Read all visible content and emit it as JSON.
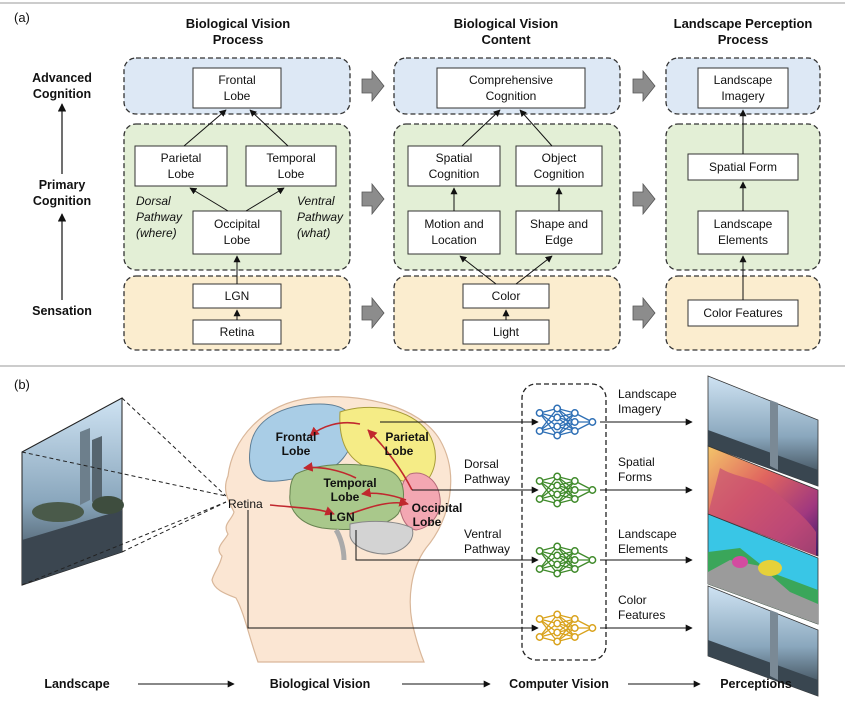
{
  "panel_a": {
    "label": "(a)",
    "col1": {
      "l1": "Biological Vision",
      "l2": "Process"
    },
    "col2": {
      "l1": "Biological Vision",
      "l2": "Content"
    },
    "col3": {
      "l1": "Landscape Perception",
      "l2": "Process"
    },
    "levels": {
      "advanced": {
        "l1": "Advanced",
        "l2": "Cognition"
      },
      "primary": {
        "l1": "Primary",
        "l2": "Cognition"
      },
      "sensation": "Sensation"
    },
    "process": {
      "frontal": {
        "l1": "Frontal",
        "l2": "Lobe"
      },
      "parietal": {
        "l1": "Parietal",
        "l2": "Lobe"
      },
      "temporal": {
        "l1": "Temporal",
        "l2": "Lobe"
      },
      "occipital": {
        "l1": "Occipital",
        "l2": "Lobe"
      },
      "lgn": "LGN",
      "retina": "Retina",
      "dorsal": {
        "l1": "Dorsal",
        "l2": "Pathway",
        "l3": "(where)"
      },
      "ventral": {
        "l1": "Ventral",
        "l2": "Pathway",
        "l3": "(what)"
      }
    },
    "content": {
      "comprehensive": {
        "l1": "Comprehensive",
        "l2": "Cognition"
      },
      "spatial": {
        "l1": "Spatial",
        "l2": "Cognition"
      },
      "object": {
        "l1": "Object",
        "l2": "Cognition"
      },
      "motion": {
        "l1": "Motion and",
        "l2": "Location"
      },
      "shape": {
        "l1": "Shape and",
        "l2": "Edge"
      },
      "color": "Color",
      "light": "Light"
    },
    "landscape": {
      "imagery": {
        "l1": "Landscape",
        "l2": "Imagery"
      },
      "spatial_form": "Spatial Form",
      "elements": {
        "l1": "Landscape",
        "l2": "Elements"
      },
      "color_features": "Color Features"
    }
  },
  "panel_b": {
    "label": "(b)",
    "brain": {
      "frontal": {
        "l1": "Frontal",
        "l2": "Lobe"
      },
      "parietal": {
        "l1": "Parietal",
        "l2": "Lobe"
      },
      "temporal": {
        "l1": "Temporal",
        "l2": "Lobe"
      },
      "occipital": {
        "l1": "Occipital",
        "l2": "Lobe"
      },
      "lgn": "LGN",
      "retina": "Retina"
    },
    "pathways": {
      "dorsal": {
        "l1": "Dorsal",
        "l2": "Pathway"
      },
      "ventral": {
        "l1": "Ventral",
        "l2": "Pathway"
      }
    },
    "outputs": [
      {
        "l1": "Landscape",
        "l2": "Imagery",
        "color": "#2e6fb5"
      },
      {
        "l1": "Spatial",
        "l2": "Forms",
        "color": "#3f8a2a"
      },
      {
        "l1": "Landscape",
        "l2": "Elements",
        "color": "#3f8a2a"
      },
      {
        "l1": "Color",
        "l2": "Features",
        "color": "#d9a21b"
      }
    ],
    "flow": [
      "Landscape",
      "Biological Vision",
      "Computer Vision",
      "Perceptions"
    ]
  },
  "colors": {
    "blue_panel": "#dde8f5",
    "green_panel": "#e3efd6",
    "yellow_panel": "#fbedcf"
  }
}
